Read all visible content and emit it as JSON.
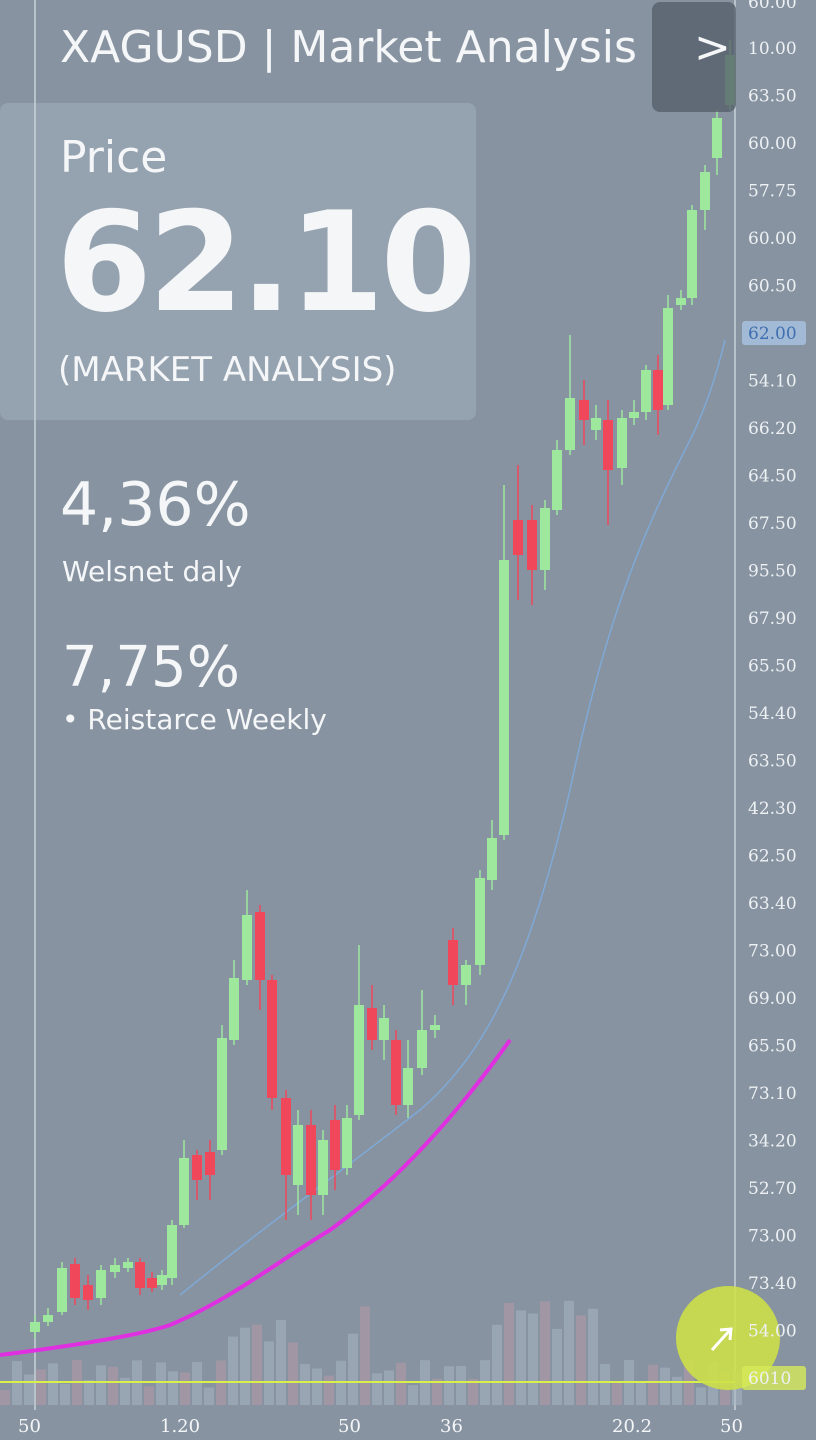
{
  "header": {
    "title": "XAGUSD | Market Analysis",
    "button": ">"
  },
  "price_panel": {
    "label": "Price",
    "value": "62.10",
    "caption": "(MARKET ANALYSIS)"
  },
  "stats": [
    {
      "value": "4,36%",
      "label": "Welsnet daly"
    },
    {
      "value": "7,75%",
      "label": "Reistarce Weekly"
    }
  ],
  "right_axis": [
    "60.00",
    "10.00",
    "63.50",
    "60.00",
    "57.75",
    "60.00",
    "60.50",
    "62.00",
    "54.10",
    "66.20",
    "64.50",
    "67.50",
    "95.50",
    "67.90",
    "65.50",
    "54.40",
    "63.50",
    "42.30",
    "62.50",
    "63.40",
    "73.00",
    "69.00",
    "65.50",
    "73.10",
    "34.20",
    "52.70",
    "73.00",
    "73.40",
    "54.00",
    "6010"
  ],
  "highlighted_axis": [
    7,
    29
  ],
  "bottom_axis": [
    "50",
    "1.20",
    "50",
    "36",
    "20.2",
    "50"
  ]
}
